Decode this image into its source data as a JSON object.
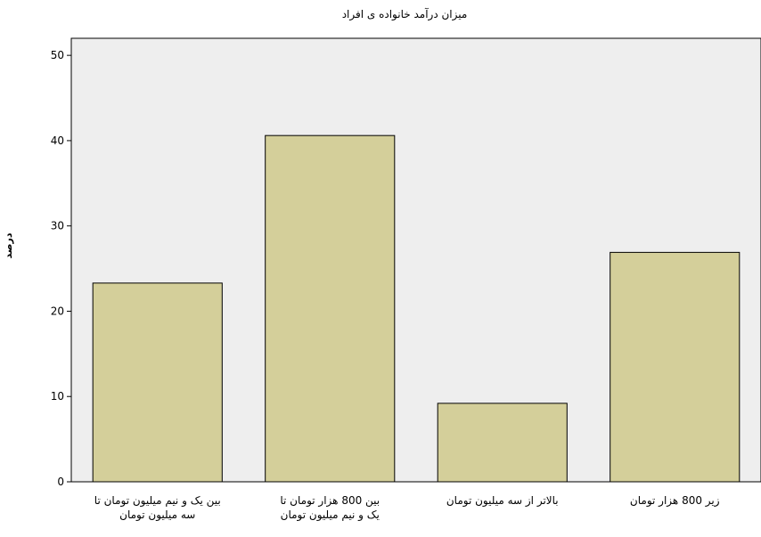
{
  "chart_data": {
    "type": "bar",
    "title": "میزان درآمد خانواده ی افراد",
    "xlabel": "",
    "ylabel": "درصد",
    "ylim": [
      0,
      52
    ],
    "yticks": [
      0,
      10,
      20,
      30,
      40,
      50
    ],
    "grid": false,
    "legend": "none",
    "categories": [
      [
        "بین یک و نیم میلیون تومان تا",
        "سه میلیون تومان"
      ],
      [
        "بین 800 هزار تومان تا",
        "یک و نیم میلیون تومان"
      ],
      [
        "بالاتر از سه میلیون تومان"
      ],
      [
        "زیر 800 هزار تومان"
      ]
    ],
    "values": [
      23.3,
      40.6,
      9.2,
      26.9
    ],
    "colors": {
      "plot_background": "#eeeeee",
      "bar_fill": "#d4cf9a",
      "bar_stroke": "#000000",
      "axis": "#000000"
    }
  }
}
